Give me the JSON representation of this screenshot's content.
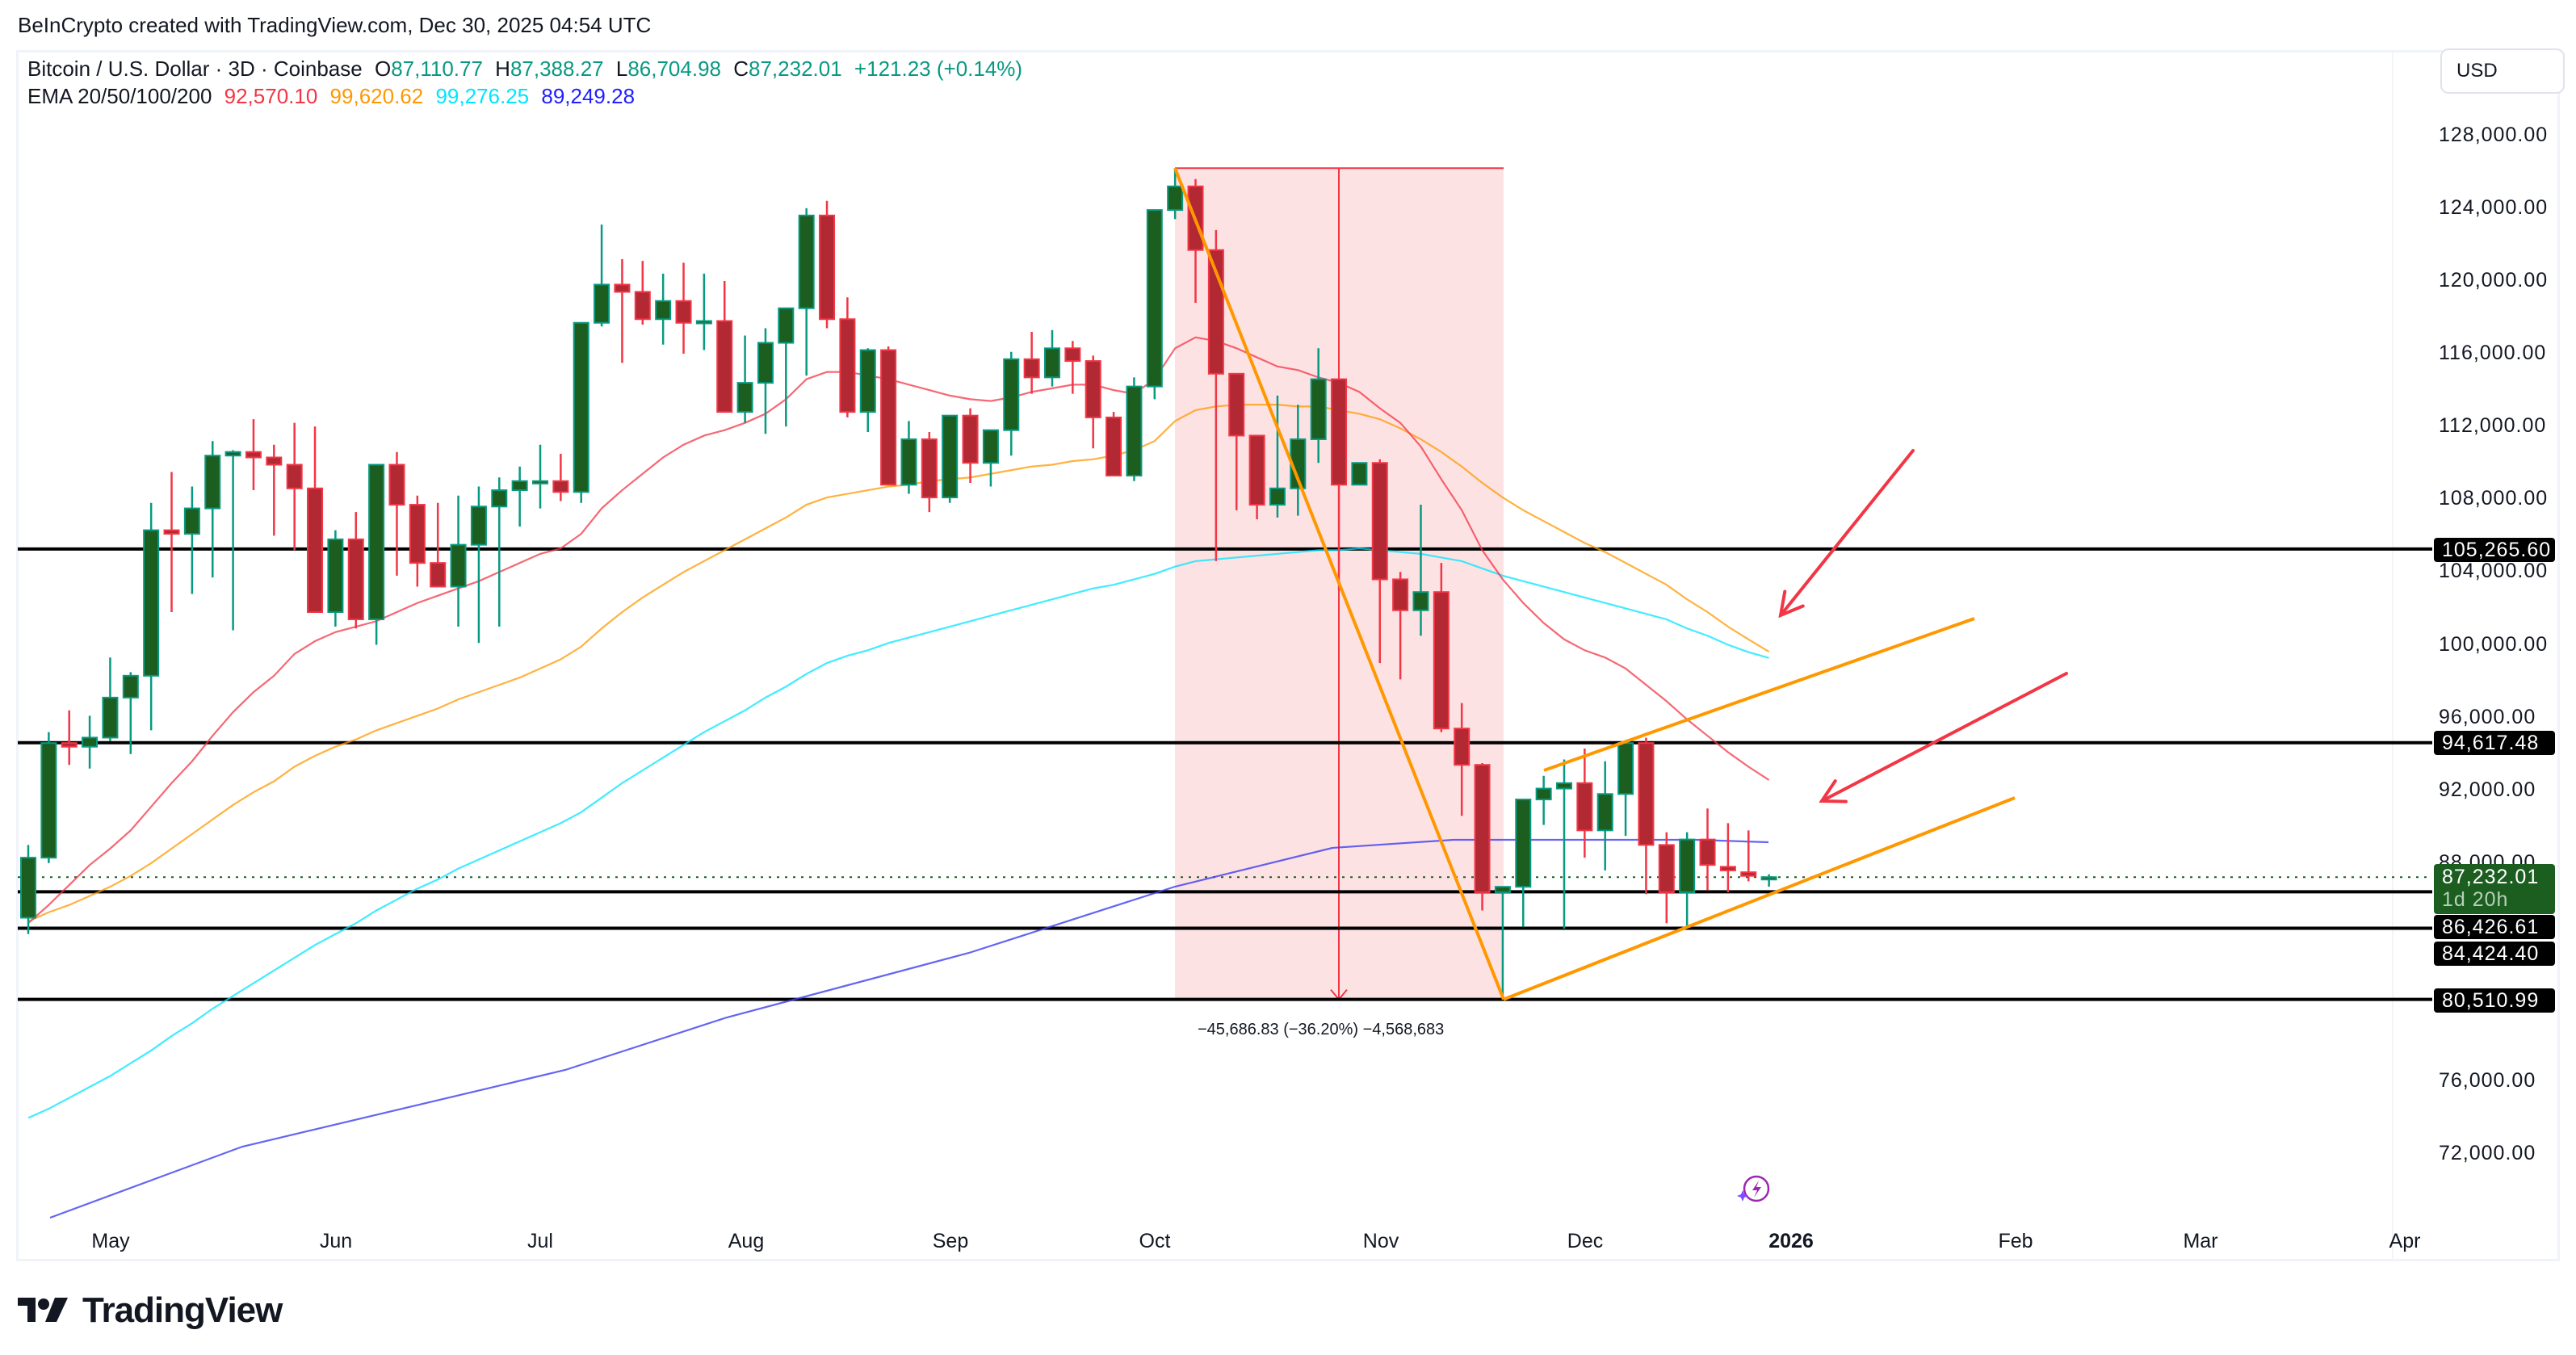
{
  "credit": "BeInCrypto created with TradingView.com, Dec 30, 2025 04:54 UTC",
  "legend": {
    "symbol": "Bitcoin / U.S. Dollar · 3D · Coinbase",
    "o_label": "O",
    "o": "87,110.77",
    "h_label": "H",
    "h": "87,388.27",
    "l_label": "L",
    "l": "86,704.98",
    "c_label": "C",
    "c": "87,232.01",
    "change": "+121.23 (+0.14%)",
    "ema_label": "EMA 20/50/100/200",
    "ema20": "92,570.10",
    "ema50": "99,620.62",
    "ema100": "99,276.25",
    "ema200": "89,249.28"
  },
  "currency_button": "USD",
  "colors": {
    "up_body": "#1b5e20",
    "up_border": "#089981",
    "down_body": "#b22833",
    "down_border": "#f23645",
    "ema20": "#f23645",
    "ema50": "#ff9800",
    "ema100": "#00e5ff",
    "ema200": "#2962ff",
    "drawing_orange": "#ff9800",
    "arrow_red": "#f23645",
    "measure_fill": "#fde2e4",
    "level_line": "#000000"
  },
  "price_tags": {
    "r1": "105,265.60",
    "r2": "94,617.48",
    "last": "87,232.01",
    "countdown": "1d 20h",
    "s1": "86,426.61",
    "s2": "84,424.40",
    "s3": "80,510.99"
  },
  "measure_label": "−45,686.83 (−36.20%) −4,568,683",
  "logo_text": "TradingView",
  "chart_data": {
    "type": "candlestick",
    "title": "Bitcoin / U.S. Dollar · 3D · Coinbase",
    "xlabel": "",
    "ylabel": "USD",
    "ylim": [
      70000,
      130000
    ],
    "grid": false,
    "y_ticks": [
      "128,000.00",
      "124,000.00",
      "120,000.00",
      "116,000.00",
      "112,000.00",
      "108,000.00",
      "104,000.00",
      "100,000.00",
      "96,000.00",
      "92,000.00",
      "88,000.00",
      "76,000.00",
      "72,000.00"
    ],
    "y_tick_values": [
      128000,
      124000,
      120000,
      116000,
      112000,
      108000,
      104000,
      100000,
      96000,
      92000,
      88000,
      76000,
      72000
    ],
    "x_ticks": [
      {
        "label": "May",
        "x": 137
      },
      {
        "label": "Jun",
        "x": 416
      },
      {
        "label": "Jul",
        "x": 669
      },
      {
        "label": "Aug",
        "x": 924
      },
      {
        "label": "Sep",
        "x": 1177
      },
      {
        "label": "Oct",
        "x": 1430
      },
      {
        "label": "Nov",
        "x": 1710
      },
      {
        "label": "Dec",
        "x": 1963
      },
      {
        "label": "2026",
        "x": 2218,
        "bold": true
      },
      {
        "label": "Feb",
        "x": 2496
      },
      {
        "label": "Mar",
        "x": 2725
      },
      {
        "label": "Apr",
        "x": 2978
      }
    ],
    "horizontal_levels": [
      105265.6,
      94617.48,
      86426.61,
      84424.4,
      80510.99
    ],
    "last_price": 87232.01,
    "ema_legend": {
      "EMA20": 92570.1,
      "EMA50": 99620.62,
      "EMA100": 99276.25,
      "EMA200": 89249.28
    },
    "measurement": {
      "from_price": 126200,
      "to_price": 80510.99,
      "change": -45686.83,
      "percent": -36.2,
      "label": "−45,686.83 (−36.20%) −4,568,683"
    },
    "candles": [
      [
        85000,
        89000,
        84100,
        88300
      ],
      [
        88300,
        95200,
        88000,
        94600
      ],
      [
        94600,
        96400,
        93400,
        94400
      ],
      [
        94400,
        96100,
        93200,
        94900
      ],
      [
        94900,
        99300,
        94700,
        97100
      ],
      [
        97100,
        98500,
        94000,
        98300
      ],
      [
        98300,
        107800,
        95300,
        106300
      ],
      [
        106300,
        109500,
        101800,
        106100
      ],
      [
        106100,
        108700,
        102800,
        107500
      ],
      [
        107500,
        111200,
        103700,
        110400
      ],
      [
        110400,
        110700,
        100800,
        110600
      ],
      [
        110600,
        112400,
        108500,
        110300
      ],
      [
        110300,
        111000,
        106000,
        109900
      ],
      [
        109900,
        112200,
        105200,
        108600
      ],
      [
        108600,
        112000,
        101800,
        101800
      ],
      [
        101800,
        106300,
        101000,
        105800
      ],
      [
        105800,
        107300,
        100900,
        101400
      ],
      [
        101400,
        106400,
        100000,
        109900
      ],
      [
        109900,
        110600,
        103800,
        107700
      ],
      [
        107700,
        108200,
        103200,
        104500
      ],
      [
        104500,
        107800,
        103400,
        103200
      ],
      [
        103200,
        108200,
        101000,
        105500
      ],
      [
        105500,
        108700,
        100100,
        107600
      ],
      [
        107600,
        109200,
        101000,
        108500
      ],
      [
        108500,
        109800,
        106500,
        109000
      ],
      [
        109000,
        111000,
        107500,
        109000
      ],
      [
        109000,
        110500,
        107900,
        108400
      ],
      [
        108400,
        117500,
        107800,
        117700
      ],
      [
        117700,
        123100,
        117500,
        119800
      ],
      [
        119800,
        121200,
        115500,
        119400
      ],
      [
        119400,
        121100,
        117600,
        117900
      ],
      [
        117900,
        120400,
        116500,
        118900
      ],
      [
        118900,
        121000,
        116000,
        117700
      ],
      [
        117700,
        120400,
        116200,
        117800
      ],
      [
        117800,
        120000,
        115500,
        112800
      ],
      [
        112800,
        117000,
        112200,
        114400
      ],
      [
        114400,
        117400,
        111600,
        116600
      ],
      [
        116600,
        118500,
        112000,
        118500
      ],
      [
        118500,
        124000,
        114800,
        123600
      ],
      [
        123600,
        124400,
        117400,
        117900
      ],
      [
        117900,
        119100,
        112500,
        112800
      ],
      [
        112800,
        116300,
        111700,
        116200
      ],
      [
        116200,
        116400,
        108800,
        108800
      ],
      [
        108800,
        112300,
        108300,
        111300
      ],
      [
        111300,
        111700,
        107300,
        108100
      ],
      [
        108100,
        112000,
        107800,
        112600
      ],
      [
        112600,
        113000,
        108900,
        110000
      ],
      [
        110000,
        110200,
        108700,
        111800
      ],
      [
        111800,
        116100,
        110400,
        115700
      ],
      [
        115700,
        117200,
        113800,
        114700
      ],
      [
        114700,
        117300,
        114200,
        116300
      ],
      [
        116300,
        116700,
        113800,
        115600
      ],
      [
        115600,
        115900,
        110800,
        112500
      ],
      [
        112500,
        112800,
        109900,
        109300
      ],
      [
        109300,
        114700,
        109000,
        114200
      ],
      [
        114200,
        123600,
        113500,
        123900
      ],
      [
        123900,
        126200,
        123400,
        125200
      ],
      [
        125200,
        125600,
        118800,
        121700
      ],
      [
        121700,
        122800,
        104600,
        114900
      ],
      [
        114900,
        112800,
        107400,
        111500
      ],
      [
        111500,
        110400,
        106900,
        107700
      ],
      [
        107700,
        113700,
        107000,
        108600
      ],
      [
        108600,
        113200,
        107100,
        111300
      ],
      [
        111300,
        116300,
        110000,
        114600
      ],
      [
        114600,
        114600,
        103000,
        108800
      ],
      [
        108800,
        109300,
        109000,
        110000
      ],
      [
        110000,
        110200,
        99000,
        103600
      ],
      [
        103600,
        104000,
        98100,
        101900
      ],
      [
        101900,
        107700,
        100500,
        102900
      ],
      [
        102900,
        104500,
        95200,
        95400
      ],
      [
        95400,
        96800,
        90600,
        93400
      ],
      [
        93400,
        93500,
        85400,
        86400
      ],
      [
        86400,
        86600,
        80510,
        86700
      ],
      [
        86700,
        91300,
        84500,
        91500
      ],
      [
        91500,
        92800,
        90100,
        92100
      ],
      [
        92100,
        93700,
        84400,
        92400
      ],
      [
        92400,
        94300,
        88300,
        89800
      ],
      [
        89800,
        93600,
        87600,
        91800
      ],
      [
        91800,
        94600,
        89500,
        94600
      ],
      [
        94600,
        94900,
        86300,
        89000
      ],
      [
        89000,
        89700,
        84700,
        86400
      ],
      [
        86400,
        89700,
        84400,
        89300
      ],
      [
        89300,
        91000,
        86500,
        87900
      ],
      [
        87800,
        90200,
        86400,
        87600
      ],
      [
        87500,
        89800,
        87000,
        87300
      ],
      [
        87110,
        87388,
        86705,
        87232
      ]
    ],
    "ema20_series": [
      84700,
      85700,
      86800,
      87900,
      88800,
      89800,
      91100,
      92400,
      93600,
      95000,
      96300,
      97400,
      98300,
      99500,
      100200,
      100700,
      101000,
      101300,
      101800,
      102300,
      102700,
      103100,
      103500,
      104000,
      104500,
      105000,
      105300,
      106100,
      107500,
      108500,
      109400,
      110300,
      111000,
      111500,
      111800,
      112200,
      112700,
      113500,
      114600,
      115000,
      115000,
      114800,
      114600,
      114300,
      114000,
      113700,
      113500,
      113400,
      113600,
      113900,
      114100,
      114300,
      114300,
      114000,
      113800,
      114600,
      116300,
      116900,
      116700,
      116300,
      115800,
      115300,
      115100,
      114700,
      114400,
      113900,
      113000,
      112200,
      110900,
      109100,
      107400,
      105200,
      103600,
      102300,
      101200,
      100300,
      99700,
      99300,
      98700,
      97800,
      96900,
      95900,
      95000,
      94100,
      93300,
      92570
    ],
    "ema50_series": [
      84800,
      85300,
      85700,
      86200,
      86700,
      87300,
      88000,
      88800,
      89600,
      90400,
      91200,
      91900,
      92500,
      93300,
      93900,
      94400,
      94800,
      95300,
      95700,
      96100,
      96500,
      97000,
      97400,
      97800,
      98200,
      98700,
      99200,
      99900,
      100900,
      101800,
      102600,
      103300,
      104000,
      104600,
      105200,
      105800,
      106400,
      107000,
      107700,
      108100,
      108300,
      108500,
      108700,
      108800,
      109000,
      109100,
      109200,
      109400,
      109600,
      109800,
      109900,
      110100,
      110200,
      110400,
      110700,
      111200,
      112300,
      112900,
      113100,
      113200,
      113200,
      113200,
      113100,
      113100,
      112900,
      112700,
      112400,
      111900,
      111300,
      110600,
      109800,
      108900,
      108100,
      107400,
      106800,
      106200,
      105600,
      105100,
      104500,
      103900,
      103300,
      102500,
      101800,
      101000,
      100300,
      99620
    ],
    "ema100_series": [
      74000,
      74500,
      75100,
      75700,
      76300,
      77000,
      77700,
      78500,
      79200,
      80000,
      80700,
      81400,
      82100,
      82800,
      83500,
      84100,
      84700,
      85400,
      86000,
      86600,
      87100,
      87700,
      88200,
      88700,
      89200,
      89700,
      90200,
      90800,
      91600,
      92400,
      93100,
      93800,
      94500,
      95200,
      95800,
      96400,
      97100,
      97700,
      98400,
      99000,
      99400,
      99700,
      100100,
      100400,
      100700,
      101000,
      101300,
      101600,
      101900,
      102200,
      102500,
      102800,
      103100,
      103300,
      103600,
      103900,
      104300,
      104600,
      104700,
      104800,
      104900,
      105000,
      105100,
      105200,
      105200,
      105300,
      105200,
      105100,
      105000,
      104800,
      104600,
      104200,
      103800,
      103500,
      103200,
      102900,
      102600,
      102300,
      102000,
      101700,
      101400,
      100900,
      100500,
      100000,
      99600,
      99276
    ],
    "ema200_series": [
      null,
      null,
      null,
      null,
      null,
      null,
      null,
      null,
      null,
      null,
      null,
      null,
      null,
      null,
      null,
      null,
      null,
      null,
      null,
      null,
      null,
      null,
      null,
      null,
      null,
      null,
      null,
      null,
      null,
      null,
      null,
      null,
      null,
      null,
      null,
      null,
      null,
      null,
      null,
      null,
      null,
      null,
      null,
      null,
      null,
      null,
      null,
      null,
      null,
      null,
      null,
      null,
      null,
      null,
      null,
      null,
      null,
      null,
      null,
      null,
      null,
      null,
      null,
      null,
      null,
      null,
      null,
      null,
      null,
      null,
      null,
      null,
      null,
      null,
      null,
      null,
      null,
      null,
      null,
      null,
      null,
      null,
      null,
      null,
      null,
      null
    ]
  }
}
